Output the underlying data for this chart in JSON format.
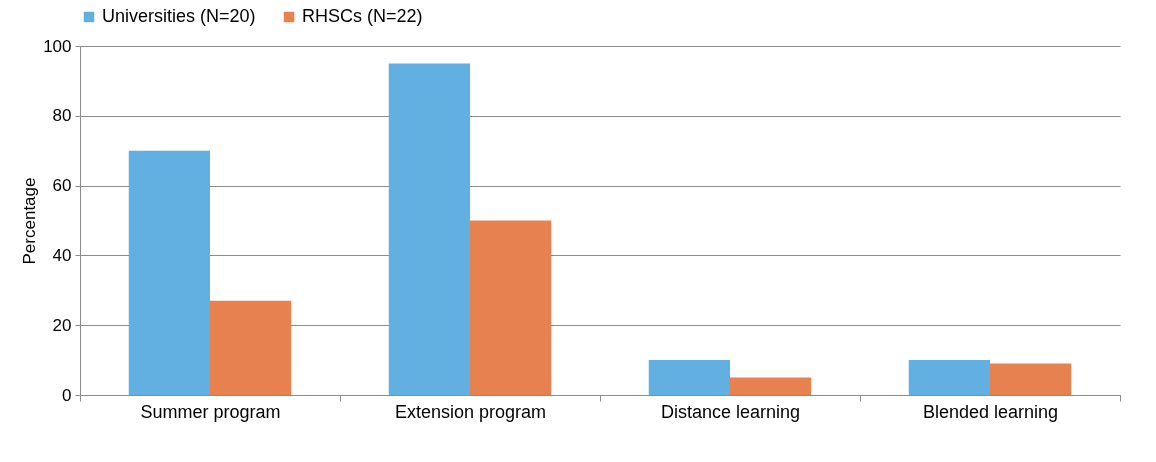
{
  "chart_data": {
    "type": "bar",
    "ylabel": "Percentage",
    "categories": [
      "Summer program",
      "Extension program",
      "Distance learning",
      "Blended learning"
    ],
    "series": [
      {
        "name": "Universities (N=20)",
        "color": "#62b0e1",
        "values": [
          70,
          95,
          10,
          10
        ]
      },
      {
        "name": "RHSCs (N=22)",
        "color": "#e88150",
        "values": [
          27,
          50,
          5,
          9
        ]
      }
    ],
    "ylim": [
      0,
      100
    ],
    "yticks": [
      0,
      20,
      40,
      60,
      80,
      100
    ],
    "grid": "y",
    "legend": "top"
  }
}
